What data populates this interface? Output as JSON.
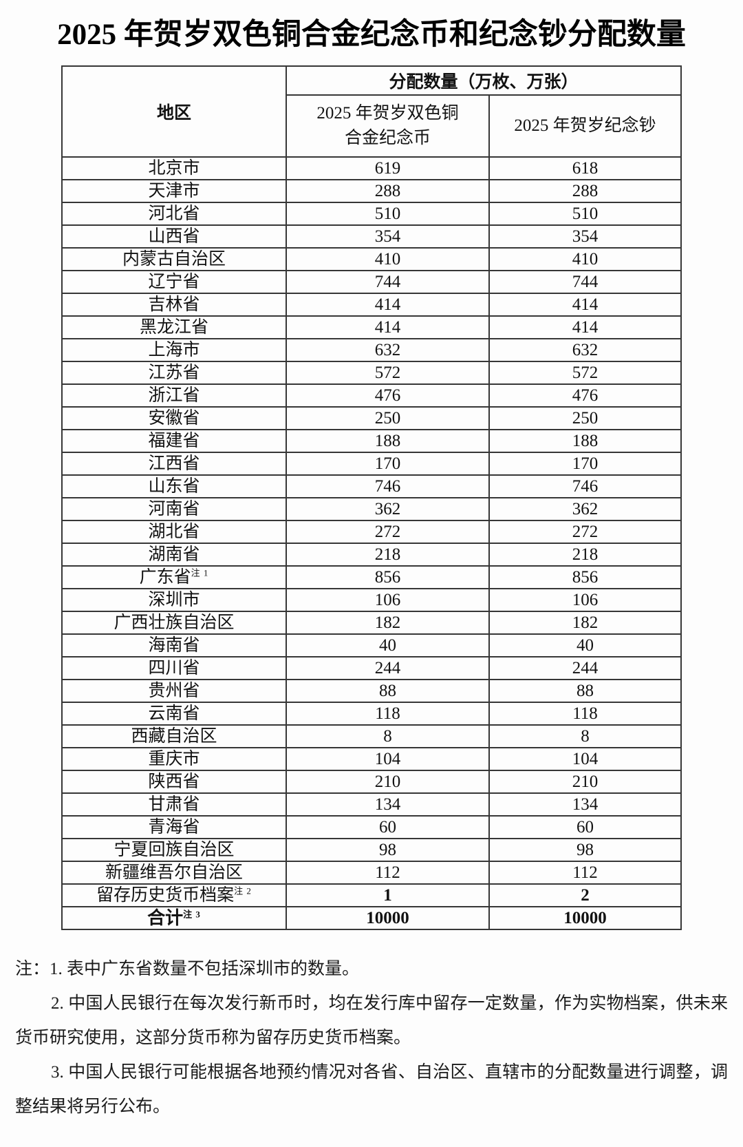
{
  "page": {
    "title": "2025 年贺岁双色铜合金纪念币和纪念钞分配数量"
  },
  "table": {
    "region_header": "地区",
    "group_header": "分配数量（万枚、万张）",
    "coin_header_line1": "2025 年贺岁双色铜",
    "coin_header_line2": "合金纪念币",
    "banknote_header": "2025 年贺岁纪念钞",
    "rows": [
      {
        "region": "北京市",
        "sup": "",
        "coin": "619",
        "banknote": "618"
      },
      {
        "region": "天津市",
        "sup": "",
        "coin": "288",
        "banknote": "288"
      },
      {
        "region": "河北省",
        "sup": "",
        "coin": "510",
        "banknote": "510"
      },
      {
        "region": "山西省",
        "sup": "",
        "coin": "354",
        "banknote": "354"
      },
      {
        "region": "内蒙古自治区",
        "sup": "",
        "coin": "410",
        "banknote": "410"
      },
      {
        "region": "辽宁省",
        "sup": "",
        "coin": "744",
        "banknote": "744"
      },
      {
        "region": "吉林省",
        "sup": "",
        "coin": "414",
        "banknote": "414"
      },
      {
        "region": "黑龙江省",
        "sup": "",
        "coin": "414",
        "banknote": "414"
      },
      {
        "region": "上海市",
        "sup": "",
        "coin": "632",
        "banknote": "632"
      },
      {
        "region": "江苏省",
        "sup": "",
        "coin": "572",
        "banknote": "572"
      },
      {
        "region": "浙江省",
        "sup": "",
        "coin": "476",
        "banknote": "476"
      },
      {
        "region": "安徽省",
        "sup": "",
        "coin": "250",
        "banknote": "250"
      },
      {
        "region": "福建省",
        "sup": "",
        "coin": "188",
        "banknote": "188"
      },
      {
        "region": "江西省",
        "sup": "",
        "coin": "170",
        "banknote": "170"
      },
      {
        "region": "山东省",
        "sup": "",
        "coin": "746",
        "banknote": "746"
      },
      {
        "region": "河南省",
        "sup": "",
        "coin": "362",
        "banknote": "362"
      },
      {
        "region": "湖北省",
        "sup": "",
        "coin": "272",
        "banknote": "272"
      },
      {
        "region": "湖南省",
        "sup": "",
        "coin": "218",
        "banknote": "218"
      },
      {
        "region": "广东省",
        "sup": "注 1",
        "coin": "856",
        "banknote": "856"
      },
      {
        "region": "深圳市",
        "sup": "",
        "coin": "106",
        "banknote": "106"
      },
      {
        "region": "广西壮族自治区",
        "sup": "",
        "coin": "182",
        "banknote": "182"
      },
      {
        "region": "海南省",
        "sup": "",
        "coin": "40",
        "banknote": "40"
      },
      {
        "region": "四川省",
        "sup": "",
        "coin": "244",
        "banknote": "244"
      },
      {
        "region": "贵州省",
        "sup": "",
        "coin": "88",
        "banknote": "88"
      },
      {
        "region": "云南省",
        "sup": "",
        "coin": "118",
        "banknote": "118"
      },
      {
        "region": "西藏自治区",
        "sup": "",
        "coin": "8",
        "banknote": "8"
      },
      {
        "region": "重庆市",
        "sup": "",
        "coin": "104",
        "banknote": "104"
      },
      {
        "region": "陕西省",
        "sup": "",
        "coin": "210",
        "banknote": "210"
      },
      {
        "region": "甘肃省",
        "sup": "",
        "coin": "134",
        "banknote": "134"
      },
      {
        "region": "青海省",
        "sup": "",
        "coin": "60",
        "banknote": "60"
      },
      {
        "region": "宁夏回族自治区",
        "sup": "",
        "coin": "98",
        "banknote": "98"
      },
      {
        "region": "新疆维吾尔自治区",
        "sup": "",
        "coin": "112",
        "banknote": "112"
      },
      {
        "region": "留存历史货币档案",
        "sup": "注 2",
        "coin": "1",
        "banknote": "2"
      },
      {
        "region": "合计",
        "sup": "注 3",
        "coin": "10000",
        "banknote": "10000"
      }
    ]
  },
  "notes": {
    "prefix": "注：",
    "item1": "1. 表中广东省数量不包括深圳市的数量。",
    "item2": "2. 中国人民银行在每次发行新币时，均在发行库中留存一定数量，作为实物档案，供未来货币研究使用，这部分货币称为留存历史货币档案。",
    "item3": "3. 中国人民银行可能根据各地预约情况对各省、自治区、直辖市的分配数量进行调整，调整结果将另行公布。"
  }
}
